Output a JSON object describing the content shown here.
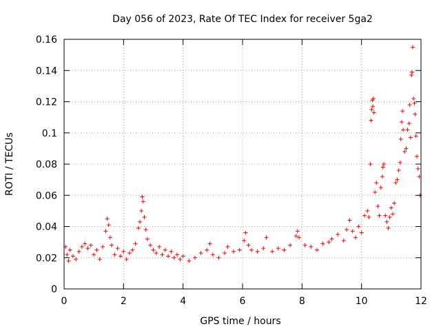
{
  "chart_data": {
    "type": "scatter",
    "title": "Day 056 of 2023, Rate Of TEC Index for receiver 5ga2",
    "xlabel": "GPS time / hours",
    "ylabel": "ROTI / TECUs",
    "xlim": [
      0,
      12
    ],
    "ylim": [
      0,
      0.16
    ],
    "x_ticks": [
      0,
      2,
      4,
      6,
      8,
      10,
      12
    ],
    "x_tick_labels": [
      "0",
      "2",
      "4",
      "6",
      "8",
      "10",
      "12"
    ],
    "y_ticks": [
      0,
      0.02,
      0.04,
      0.06,
      0.08,
      0.1,
      0.12,
      0.14,
      0.16
    ],
    "y_tick_labels": [
      "0",
      "0.02",
      "0.04",
      "0.06",
      "0.08",
      "0.1",
      "0.12",
      "0.14",
      "0.16"
    ],
    "grid": true,
    "marker": "plus",
    "color": "#ff0000",
    "series": [
      {
        "name": "ROTI",
        "points": [
          [
            0.05,
            0.027
          ],
          [
            0.1,
            0.022
          ],
          [
            0.15,
            0.018
          ],
          [
            0.2,
            0.025
          ],
          [
            0.3,
            0.021
          ],
          [
            0.4,
            0.019
          ],
          [
            0.5,
            0.024
          ],
          [
            0.6,
            0.027
          ],
          [
            0.7,
            0.029
          ],
          [
            0.8,
            0.026
          ],
          [
            0.9,
            0.028
          ],
          [
            1.0,
            0.022
          ],
          [
            1.1,
            0.025
          ],
          [
            1.2,
            0.019
          ],
          [
            1.3,
            0.027
          ],
          [
            1.4,
            0.037
          ],
          [
            1.45,
            0.045
          ],
          [
            1.5,
            0.041
          ],
          [
            1.55,
            0.033
          ],
          [
            1.6,
            0.028
          ],
          [
            1.7,
            0.022
          ],
          [
            1.8,
            0.026
          ],
          [
            1.9,
            0.021
          ],
          [
            2.0,
            0.024
          ],
          [
            2.1,
            0.019
          ],
          [
            2.2,
            0.023
          ],
          [
            2.3,
            0.025
          ],
          [
            2.4,
            0.029
          ],
          [
            2.5,
            0.039
          ],
          [
            2.55,
            0.043
          ],
          [
            2.6,
            0.05
          ],
          [
            2.63,
            0.059
          ],
          [
            2.66,
            0.056
          ],
          [
            2.7,
            0.046
          ],
          [
            2.75,
            0.038
          ],
          [
            2.8,
            0.032
          ],
          [
            2.9,
            0.028
          ],
          [
            3.0,
            0.025
          ],
          [
            3.1,
            0.023
          ],
          [
            3.2,
            0.027
          ],
          [
            3.3,
            0.022
          ],
          [
            3.4,
            0.025
          ],
          [
            3.5,
            0.021
          ],
          [
            3.6,
            0.024
          ],
          [
            3.7,
            0.02
          ],
          [
            3.8,
            0.022
          ],
          [
            3.9,
            0.019
          ],
          [
            4.0,
            0.021
          ],
          [
            4.2,
            0.018
          ],
          [
            4.4,
            0.02
          ],
          [
            4.6,
            0.023
          ],
          [
            4.8,
            0.025
          ],
          [
            4.9,
            0.029
          ],
          [
            5.0,
            0.022
          ],
          [
            5.2,
            0.02
          ],
          [
            5.4,
            0.023
          ],
          [
            5.5,
            0.027
          ],
          [
            5.7,
            0.024
          ],
          [
            5.9,
            0.025
          ],
          [
            6.05,
            0.031
          ],
          [
            6.1,
            0.036
          ],
          [
            6.2,
            0.028
          ],
          [
            6.3,
            0.025
          ],
          [
            6.5,
            0.024
          ],
          [
            6.7,
            0.026
          ],
          [
            6.8,
            0.033
          ],
          [
            7.0,
            0.024
          ],
          [
            7.2,
            0.026
          ],
          [
            7.4,
            0.025
          ],
          [
            7.6,
            0.028
          ],
          [
            7.8,
            0.034
          ],
          [
            7.85,
            0.037
          ],
          [
            7.9,
            0.033
          ],
          [
            8.1,
            0.028
          ],
          [
            8.3,
            0.027
          ],
          [
            8.5,
            0.025
          ],
          [
            8.7,
            0.029
          ],
          [
            8.9,
            0.03
          ],
          [
            9.0,
            0.032
          ],
          [
            9.2,
            0.035
          ],
          [
            9.4,
            0.031
          ],
          [
            9.5,
            0.038
          ],
          [
            9.6,
            0.044
          ],
          [
            9.7,
            0.037
          ],
          [
            9.8,
            0.033
          ],
          [
            9.9,
            0.04
          ],
          [
            10.0,
            0.036
          ],
          [
            10.1,
            0.047
          ],
          [
            10.2,
            0.05
          ],
          [
            10.25,
            0.046
          ],
          [
            10.3,
            0.08
          ],
          [
            10.32,
            0.108
          ],
          [
            10.34,
            0.115
          ],
          [
            10.36,
            0.121
          ],
          [
            10.38,
            0.117
          ],
          [
            10.4,
            0.122
          ],
          [
            10.42,
            0.113
          ],
          [
            10.45,
            0.062
          ],
          [
            10.5,
            0.068
          ],
          [
            10.55,
            0.053
          ],
          [
            10.6,
            0.047
          ],
          [
            10.65,
            0.065
          ],
          [
            10.7,
            0.072
          ],
          [
            10.72,
            0.078
          ],
          [
            10.75,
            0.08
          ],
          [
            10.8,
            0.047
          ],
          [
            10.85,
            0.043
          ],
          [
            10.9,
            0.039
          ],
          [
            10.95,
            0.046
          ],
          [
            11.0,
            0.052
          ],
          [
            11.05,
            0.048
          ],
          [
            11.1,
            0.055
          ],
          [
            11.15,
            0.068
          ],
          [
            11.2,
            0.07
          ],
          [
            11.25,
            0.076
          ],
          [
            11.3,
            0.081
          ],
          [
            11.32,
            0.096
          ],
          [
            11.35,
            0.107
          ],
          [
            11.38,
            0.114
          ],
          [
            11.4,
            0.102
          ],
          [
            11.45,
            0.088
          ],
          [
            11.5,
            0.09
          ],
          [
            11.55,
            0.102
          ],
          [
            11.6,
            0.106
          ],
          [
            11.62,
            0.118
          ],
          [
            11.65,
            0.097
          ],
          [
            11.68,
            0.137
          ],
          [
            11.7,
            0.139
          ],
          [
            11.72,
            0.155
          ],
          [
            11.75,
            0.122
          ],
          [
            11.78,
            0.119
          ],
          [
            11.8,
            0.112
          ],
          [
            11.83,
            0.098
          ],
          [
            11.86,
            0.085
          ],
          [
            11.9,
            0.077
          ],
          [
            11.94,
            0.072
          ],
          [
            11.97,
            0.06
          ]
        ]
      }
    ]
  }
}
